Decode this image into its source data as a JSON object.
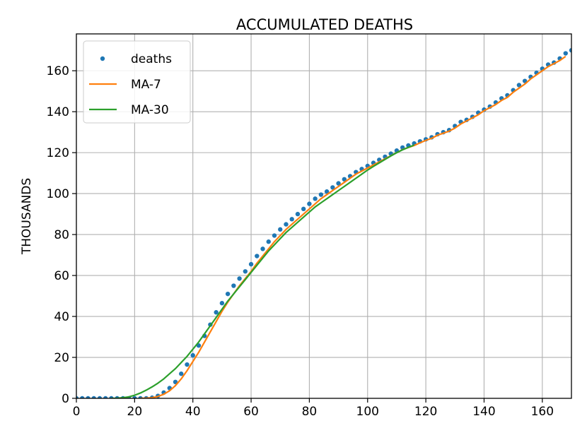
{
  "chart_data": {
    "type": "line",
    "title": "ACCUMULATED DEATHS",
    "xlabel": "",
    "ylabel": "THOUSANDS",
    "xlim": [
      0,
      170
    ],
    "ylim": [
      0,
      178
    ],
    "x_ticks": [
      0,
      20,
      40,
      60,
      80,
      100,
      120,
      140,
      160
    ],
    "y_ticks": [
      0,
      20,
      40,
      60,
      80,
      100,
      120,
      140,
      160
    ],
    "grid": true,
    "legend_position": "top-left",
    "series": [
      {
        "name": "deaths",
        "style": "dots",
        "color": "#1f77b4",
        "points": [
          [
            0,
            0
          ],
          [
            2,
            0
          ],
          [
            4,
            0
          ],
          [
            6,
            0
          ],
          [
            8,
            0
          ],
          [
            10,
            0
          ],
          [
            12,
            0
          ],
          [
            14,
            0
          ],
          [
            16,
            0
          ],
          [
            18,
            0
          ],
          [
            20,
            0
          ],
          [
            22,
            0
          ],
          [
            24,
            0
          ],
          [
            26,
            0.3
          ],
          [
            28,
            1.2
          ],
          [
            30,
            2.8
          ],
          [
            32,
            5
          ],
          [
            34,
            8
          ],
          [
            36,
            12
          ],
          [
            38,
            16.5
          ],
          [
            40,
            21
          ],
          [
            42,
            25.8
          ],
          [
            44,
            30.5
          ],
          [
            46,
            36
          ],
          [
            48,
            42
          ],
          [
            50,
            46.5
          ],
          [
            52,
            51
          ],
          [
            54,
            55
          ],
          [
            56,
            58.5
          ],
          [
            58,
            62
          ],
          [
            60,
            65.5
          ],
          [
            62,
            69.5
          ],
          [
            64,
            73
          ],
          [
            66,
            76.5
          ],
          [
            68,
            79.5
          ],
          [
            70,
            82.5
          ],
          [
            72,
            85
          ],
          [
            74,
            87.5
          ],
          [
            76,
            90
          ],
          [
            78,
            92.5
          ],
          [
            80,
            95
          ],
          [
            82,
            97.5
          ],
          [
            84,
            99.5
          ],
          [
            86,
            101
          ],
          [
            88,
            103
          ],
          [
            90,
            105
          ],
          [
            92,
            107
          ],
          [
            94,
            108.5
          ],
          [
            96,
            110.5
          ],
          [
            98,
            112
          ],
          [
            100,
            113.5
          ],
          [
            102,
            115
          ],
          [
            104,
            116.5
          ],
          [
            106,
            118
          ],
          [
            108,
            119.5
          ],
          [
            110,
            121
          ],
          [
            112,
            122.5
          ],
          [
            114,
            123.5
          ],
          [
            116,
            124.5
          ],
          [
            118,
            125.5
          ],
          [
            120,
            126.5
          ],
          [
            122,
            127.5
          ],
          [
            124,
            129
          ],
          [
            126,
            130
          ],
          [
            128,
            131
          ],
          [
            130,
            133
          ],
          [
            132,
            135
          ],
          [
            134,
            136
          ],
          [
            136,
            137.5
          ],
          [
            138,
            139.5
          ],
          [
            140,
            141
          ],
          [
            142,
            142.5
          ],
          [
            144,
            144.5
          ],
          [
            146,
            146.5
          ],
          [
            148,
            148
          ],
          [
            150,
            150.5
          ],
          [
            152,
            153
          ],
          [
            154,
            155
          ],
          [
            156,
            157
          ],
          [
            158,
            159
          ],
          [
            160,
            161
          ],
          [
            162,
            163
          ],
          [
            164,
            164
          ],
          [
            166,
            166
          ],
          [
            168,
            168.5
          ],
          [
            170,
            170
          ]
        ]
      },
      {
        "name": "MA-7",
        "style": "line",
        "color": "#ff7f0e",
        "points": [
          [
            22,
            0
          ],
          [
            24,
            0.1
          ],
          [
            26,
            0.3
          ],
          [
            28,
            0.9
          ],
          [
            30,
            2
          ],
          [
            32,
            3.7
          ],
          [
            34,
            6.2
          ],
          [
            36,
            9.5
          ],
          [
            38,
            13.5
          ],
          [
            40,
            18
          ],
          [
            42,
            22.5
          ],
          [
            44,
            27.5
          ],
          [
            46,
            32.5
          ],
          [
            48,
            37.5
          ],
          [
            50,
            42.5
          ],
          [
            52,
            47
          ],
          [
            54,
            51
          ],
          [
            56,
            55
          ],
          [
            58,
            58.5
          ],
          [
            60,
            62
          ],
          [
            62,
            66
          ],
          [
            64,
            69.5
          ],
          [
            66,
            73
          ],
          [
            68,
            76.5
          ],
          [
            70,
            79.5
          ],
          [
            72,
            82.5
          ],
          [
            74,
            85
          ],
          [
            76,
            87.5
          ],
          [
            78,
            90
          ],
          [
            80,
            92.5
          ],
          [
            82,
            95
          ],
          [
            84,
            97.5
          ],
          [
            86,
            99.5
          ],
          [
            88,
            101.5
          ],
          [
            90,
            103.5
          ],
          [
            92,
            105.5
          ],
          [
            94,
            107.5
          ],
          [
            96,
            109.5
          ],
          [
            98,
            111
          ],
          [
            100,
            112.5
          ],
          [
            102,
            114
          ],
          [
            104,
            115.5
          ],
          [
            106,
            117
          ],
          [
            108,
            118.5
          ],
          [
            110,
            120
          ],
          [
            112,
            121.5
          ],
          [
            114,
            122.5
          ],
          [
            116,
            123.5
          ],
          [
            118,
            124.8
          ],
          [
            120,
            126
          ],
          [
            122,
            127
          ],
          [
            124,
            128.5
          ],
          [
            126,
            129.5
          ],
          [
            128,
            130.5
          ],
          [
            130,
            132
          ],
          [
            132,
            134
          ],
          [
            134,
            135.5
          ],
          [
            136,
            137
          ],
          [
            138,
            138.5
          ],
          [
            140,
            140.5
          ],
          [
            142,
            142
          ],
          [
            144,
            143.5
          ],
          [
            146,
            145.5
          ],
          [
            148,
            147
          ],
          [
            150,
            149.5
          ],
          [
            152,
            151.5
          ],
          [
            154,
            153.5
          ],
          [
            156,
            156
          ],
          [
            158,
            158
          ],
          [
            160,
            160
          ],
          [
            162,
            162
          ],
          [
            164,
            163.5
          ],
          [
            166,
            165
          ],
          [
            168,
            167
          ]
        ]
      },
      {
        "name": "MA-30",
        "style": "line",
        "color": "#2ca02c",
        "points": [
          [
            12,
            0
          ],
          [
            14,
            0.05
          ],
          [
            16,
            0.3
          ],
          [
            18,
            0.7
          ],
          [
            20,
            1.5
          ],
          [
            22,
            2.6
          ],
          [
            24,
            4
          ],
          [
            26,
            5.6
          ],
          [
            28,
            7.4
          ],
          [
            30,
            9.5
          ],
          [
            32,
            12
          ],
          [
            34,
            14.5
          ],
          [
            36,
            17.5
          ],
          [
            38,
            20.5
          ],
          [
            40,
            24
          ],
          [
            42,
            27.5
          ],
          [
            44,
            31.5
          ],
          [
            46,
            35.5
          ],
          [
            48,
            39.5
          ],
          [
            50,
            43.5
          ],
          [
            52,
            47.5
          ],
          [
            54,
            51
          ],
          [
            56,
            54.5
          ],
          [
            58,
            58
          ],
          [
            60,
            61.5
          ],
          [
            62,
            65
          ],
          [
            64,
            68.5
          ],
          [
            66,
            72
          ],
          [
            68,
            75
          ],
          [
            70,
            78
          ],
          [
            72,
            81
          ],
          [
            74,
            83.5
          ],
          [
            76,
            86
          ],
          [
            78,
            88.5
          ],
          [
            80,
            91
          ],
          [
            82,
            93.5
          ],
          [
            84,
            95.5
          ],
          [
            86,
            97.5
          ],
          [
            88,
            99.5
          ],
          [
            90,
            101.5
          ],
          [
            92,
            103.5
          ],
          [
            94,
            105.5
          ],
          [
            96,
            107.5
          ],
          [
            98,
            109.5
          ],
          [
            100,
            111.5
          ],
          [
            102,
            113.3
          ],
          [
            104,
            115
          ],
          [
            106,
            116.7
          ],
          [
            108,
            118.4
          ],
          [
            110,
            120
          ],
          [
            112,
            121.4
          ],
          [
            114,
            122.6
          ],
          [
            116,
            123.7
          ]
        ]
      }
    ]
  }
}
